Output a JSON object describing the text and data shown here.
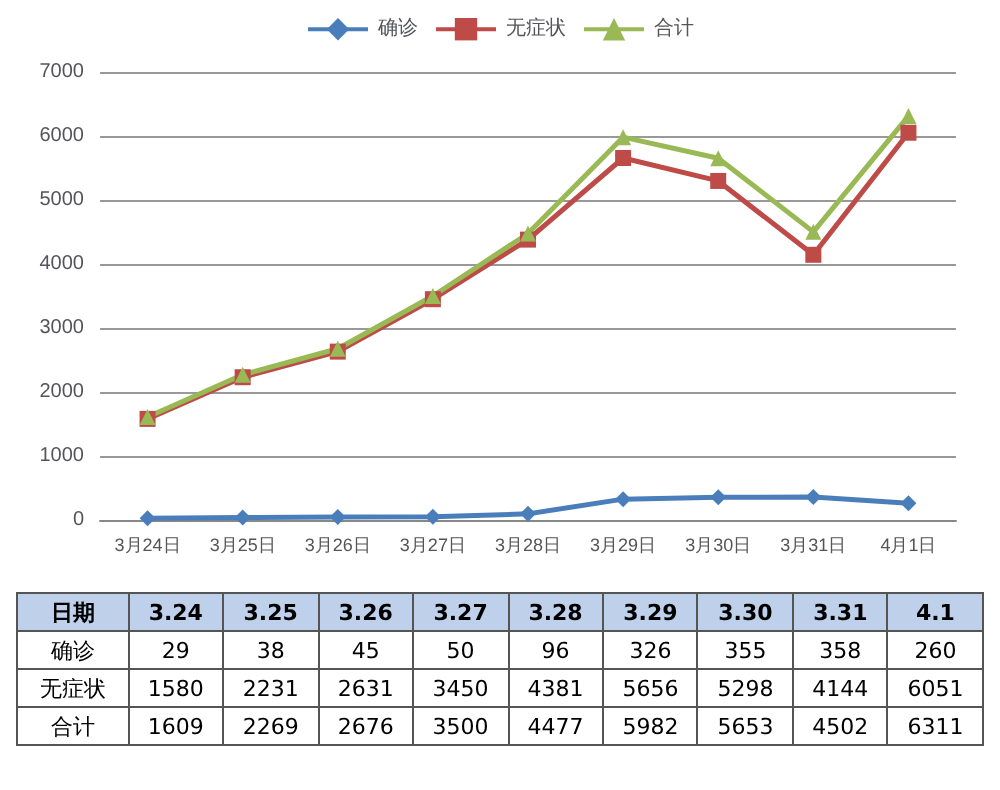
{
  "chart_data": {
    "type": "line",
    "categories": [
      "3月24日",
      "3月25日",
      "3月26日",
      "3月27日",
      "3月28日",
      "3月29日",
      "3月30日",
      "3月31日",
      "4月1日"
    ],
    "series": [
      {
        "name": "确诊",
        "color": "#4a7ebb",
        "marker": "diamond",
        "values": [
          29,
          38,
          45,
          50,
          96,
          326,
          355,
          358,
          260
        ]
      },
      {
        "name": "无症状",
        "color": "#be4b48",
        "marker": "square",
        "values": [
          1580,
          2231,
          2631,
          3450,
          4381,
          5656,
          5298,
          4144,
          6051
        ]
      },
      {
        "name": "合计",
        "color": "#98b954",
        "marker": "triangle",
        "values": [
          1609,
          2269,
          2676,
          3500,
          4477,
          5982,
          5653,
          4502,
          6311
        ]
      }
    ],
    "ylim": [
      0,
      7000
    ],
    "yticks": [
      0,
      1000,
      2000,
      3000,
      4000,
      5000,
      6000,
      7000
    ],
    "grid": "y",
    "legend": "top",
    "data_labels": true,
    "annotations": [
      "日期",
      "3.24",
      "3.25",
      "3.26",
      "3.27",
      "3.28",
      "3.29",
      "3.30",
      "3.31",
      "4.1"
    ]
  }
}
